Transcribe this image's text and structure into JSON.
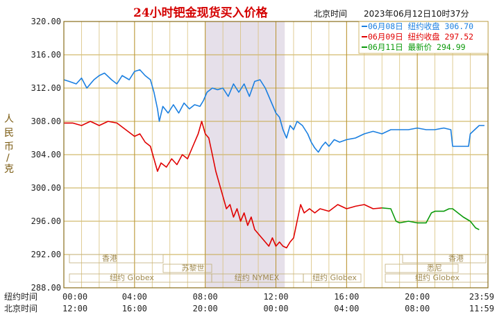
{
  "header": {
    "title": "24小时钯金现货买入价格",
    "tz": "北京时间",
    "timestamp": "2023年06月12日10时37分"
  },
  "legend": [
    {
      "date": "06月08日",
      "label": "纽约收盘",
      "value": "306.70",
      "color": "#1a7fe0"
    },
    {
      "date": "06月09日",
      "label": "纽约收盘",
      "value": "297.52",
      "color": "#e00000"
    },
    {
      "date": "06月11日",
      "label": "最新价",
      "value": "294.99",
      "color": "#0a9a0a"
    }
  ],
  "sessions": [
    {
      "name": "香港",
      "row": 0
    },
    {
      "name": "苏黎世",
      "row": 1
    },
    {
      "name": "纽约 Globex",
      "row": 2
    },
    {
      "name": "纽约 NYMEX",
      "row": 2
    },
    {
      "name": "纽约 Globex",
      "row": 2
    },
    {
      "name": "悉尼",
      "row": 1
    },
    {
      "name": "香港",
      "row": 0
    },
    {
      "name": "纽约 Globex",
      "row": 2
    }
  ],
  "chart_data": {
    "type": "line",
    "title": "24小时钯金现货买入价格",
    "ylabel": "人民币/克",
    "ylim": [
      288,
      320
    ],
    "yticks": [
      "320.00",
      "316.00",
      "312.00",
      "308.00",
      "304.00",
      "300.00",
      "296.00",
      "292.00",
      "288.00"
    ],
    "xtick_rows": [
      {
        "label": "纽约时间",
        "ticks": [
          "00:00",
          "04:00",
          "08:00",
          "12:00",
          "16:00",
          "20:00",
          "23:59"
        ]
      },
      {
        "label": "北京时间",
        "ticks": [
          "12:00",
          "16:00",
          "20:00",
          "00:00",
          "04:00",
          "08:00",
          "11:59"
        ]
      }
    ],
    "x_hours": [
      0,
      4,
      8,
      12,
      16,
      20,
      24
    ],
    "shaded_range_hours": [
      8,
      12.5
    ],
    "grid": true,
    "series": [
      {
        "name": "06月08日 纽约收盘",
        "color": "#1a7fe0",
        "points": [
          [
            0,
            313.0
          ],
          [
            0.3,
            312.8
          ],
          [
            0.7,
            312.5
          ],
          [
            1.0,
            313.2
          ],
          [
            1.3,
            312.0
          ],
          [
            1.7,
            313.0
          ],
          [
            2.0,
            313.5
          ],
          [
            2.3,
            313.8
          ],
          [
            2.7,
            313.0
          ],
          [
            3.0,
            312.5
          ],
          [
            3.3,
            313.5
          ],
          [
            3.7,
            313.0
          ],
          [
            4.0,
            314.0
          ],
          [
            4.3,
            314.2
          ],
          [
            4.6,
            313.5
          ],
          [
            4.9,
            313.0
          ],
          [
            5.1,
            311.5
          ],
          [
            5.3,
            309.5
          ],
          [
            5.4,
            308.0
          ],
          [
            5.6,
            309.8
          ],
          [
            5.9,
            309.0
          ],
          [
            6.2,
            310.0
          ],
          [
            6.5,
            309.0
          ],
          [
            6.8,
            310.2
          ],
          [
            7.1,
            309.5
          ],
          [
            7.4,
            310.0
          ],
          [
            7.7,
            309.8
          ],
          [
            7.9,
            310.5
          ],
          [
            8.1,
            311.5
          ],
          [
            8.4,
            312.0
          ],
          [
            8.7,
            311.8
          ],
          [
            9.0,
            312.0
          ],
          [
            9.3,
            311.0
          ],
          [
            9.6,
            312.5
          ],
          [
            9.9,
            311.5
          ],
          [
            10.2,
            312.5
          ],
          [
            10.5,
            311.0
          ],
          [
            10.8,
            312.8
          ],
          [
            11.1,
            313.0
          ],
          [
            11.4,
            312.0
          ],
          [
            11.6,
            311.0
          ],
          [
            11.8,
            310.0
          ],
          [
            12.0,
            309.0
          ],
          [
            12.2,
            308.5
          ],
          [
            12.4,
            307.0
          ],
          [
            12.6,
            306.0
          ],
          [
            12.8,
            307.5
          ],
          [
            13.0,
            307.0
          ],
          [
            13.2,
            308.0
          ],
          [
            13.5,
            307.5
          ],
          [
            13.8,
            306.5
          ],
          [
            14.0,
            305.5
          ],
          [
            14.2,
            304.8
          ],
          [
            14.4,
            304.3
          ],
          [
            14.6,
            305.0
          ],
          [
            14.8,
            305.5
          ],
          [
            15.0,
            305.0
          ],
          [
            15.3,
            305.8
          ],
          [
            15.6,
            305.5
          ],
          [
            16.0,
            305.8
          ],
          [
            16.5,
            306.0
          ],
          [
            17.0,
            306.5
          ],
          [
            17.5,
            306.8
          ],
          [
            18.0,
            306.5
          ],
          [
            18.5,
            307.0
          ],
          [
            19.0,
            307.0
          ],
          [
            19.5,
            307.0
          ],
          [
            20.0,
            307.2
          ],
          [
            20.5,
            307.0
          ],
          [
            21.0,
            307.0
          ],
          [
            21.5,
            307.2
          ],
          [
            21.9,
            307.0
          ],
          [
            22.0,
            305.0
          ],
          [
            22.5,
            305.0
          ],
          [
            22.9,
            305.0
          ],
          [
            23.0,
            306.5
          ],
          [
            23.5,
            307.5
          ],
          [
            23.8,
            307.5
          ]
        ]
      },
      {
        "name": "06月09日 纽约收盘",
        "color": "#e00000",
        "points": [
          [
            0,
            307.8
          ],
          [
            0.5,
            307.8
          ],
          [
            1.0,
            307.5
          ],
          [
            1.5,
            308.0
          ],
          [
            2.0,
            307.5
          ],
          [
            2.5,
            308.0
          ],
          [
            3.0,
            307.8
          ],
          [
            3.5,
            307.0
          ],
          [
            4.0,
            306.2
          ],
          [
            4.3,
            306.5
          ],
          [
            4.6,
            305.5
          ],
          [
            4.9,
            305.0
          ],
          [
            5.1,
            303.5
          ],
          [
            5.3,
            302.0
          ],
          [
            5.5,
            303.0
          ],
          [
            5.8,
            302.5
          ],
          [
            6.1,
            303.5
          ],
          [
            6.4,
            302.8
          ],
          [
            6.7,
            304.0
          ],
          [
            7.0,
            303.5
          ],
          [
            7.3,
            305.0
          ],
          [
            7.6,
            306.5
          ],
          [
            7.8,
            308.0
          ],
          [
            8.0,
            306.5
          ],
          [
            8.2,
            306.0
          ],
          [
            8.4,
            304.0
          ],
          [
            8.6,
            302.0
          ],
          [
            8.8,
            300.5
          ],
          [
            9.0,
            299.0
          ],
          [
            9.2,
            297.5
          ],
          [
            9.4,
            298.0
          ],
          [
            9.6,
            296.5
          ],
          [
            9.8,
            297.5
          ],
          [
            10.0,
            296.0
          ],
          [
            10.2,
            297.0
          ],
          [
            10.4,
            295.5
          ],
          [
            10.6,
            296.5
          ],
          [
            10.8,
            295.0
          ],
          [
            11.0,
            294.5
          ],
          [
            11.2,
            294.0
          ],
          [
            11.4,
            293.5
          ],
          [
            11.6,
            293.0
          ],
          [
            11.8,
            294.0
          ],
          [
            12.0,
            293.0
          ],
          [
            12.2,
            293.5
          ],
          [
            12.4,
            293.0
          ],
          [
            12.6,
            292.8
          ],
          [
            12.8,
            293.5
          ],
          [
            13.0,
            294.0
          ],
          [
            13.2,
            296.0
          ],
          [
            13.4,
            298.0
          ],
          [
            13.6,
            297.0
          ],
          [
            13.9,
            297.5
          ],
          [
            14.2,
            297.0
          ],
          [
            14.5,
            297.5
          ],
          [
            15.0,
            297.2
          ],
          [
            15.5,
            298.0
          ],
          [
            16.0,
            297.5
          ],
          [
            16.5,
            297.8
          ],
          [
            17.0,
            298.0
          ],
          [
            17.5,
            297.5
          ],
          [
            18.0,
            297.6
          ]
        ]
      },
      {
        "name": "06月11日 最新价",
        "color": "#0a9a0a",
        "points": [
          [
            18.0,
            297.6
          ],
          [
            18.5,
            297.5
          ],
          [
            18.8,
            296.0
          ],
          [
            19.0,
            295.8
          ],
          [
            19.5,
            296.0
          ],
          [
            20.0,
            295.8
          ],
          [
            20.5,
            295.8
          ],
          [
            20.8,
            297.0
          ],
          [
            21.0,
            297.2
          ],
          [
            21.5,
            297.2
          ],
          [
            21.8,
            297.5
          ],
          [
            22.0,
            297.5
          ],
          [
            22.3,
            297.0
          ],
          [
            22.6,
            296.5
          ],
          [
            23.0,
            296.0
          ],
          [
            23.3,
            295.2
          ],
          [
            23.5,
            294.99
          ]
        ]
      }
    ]
  }
}
